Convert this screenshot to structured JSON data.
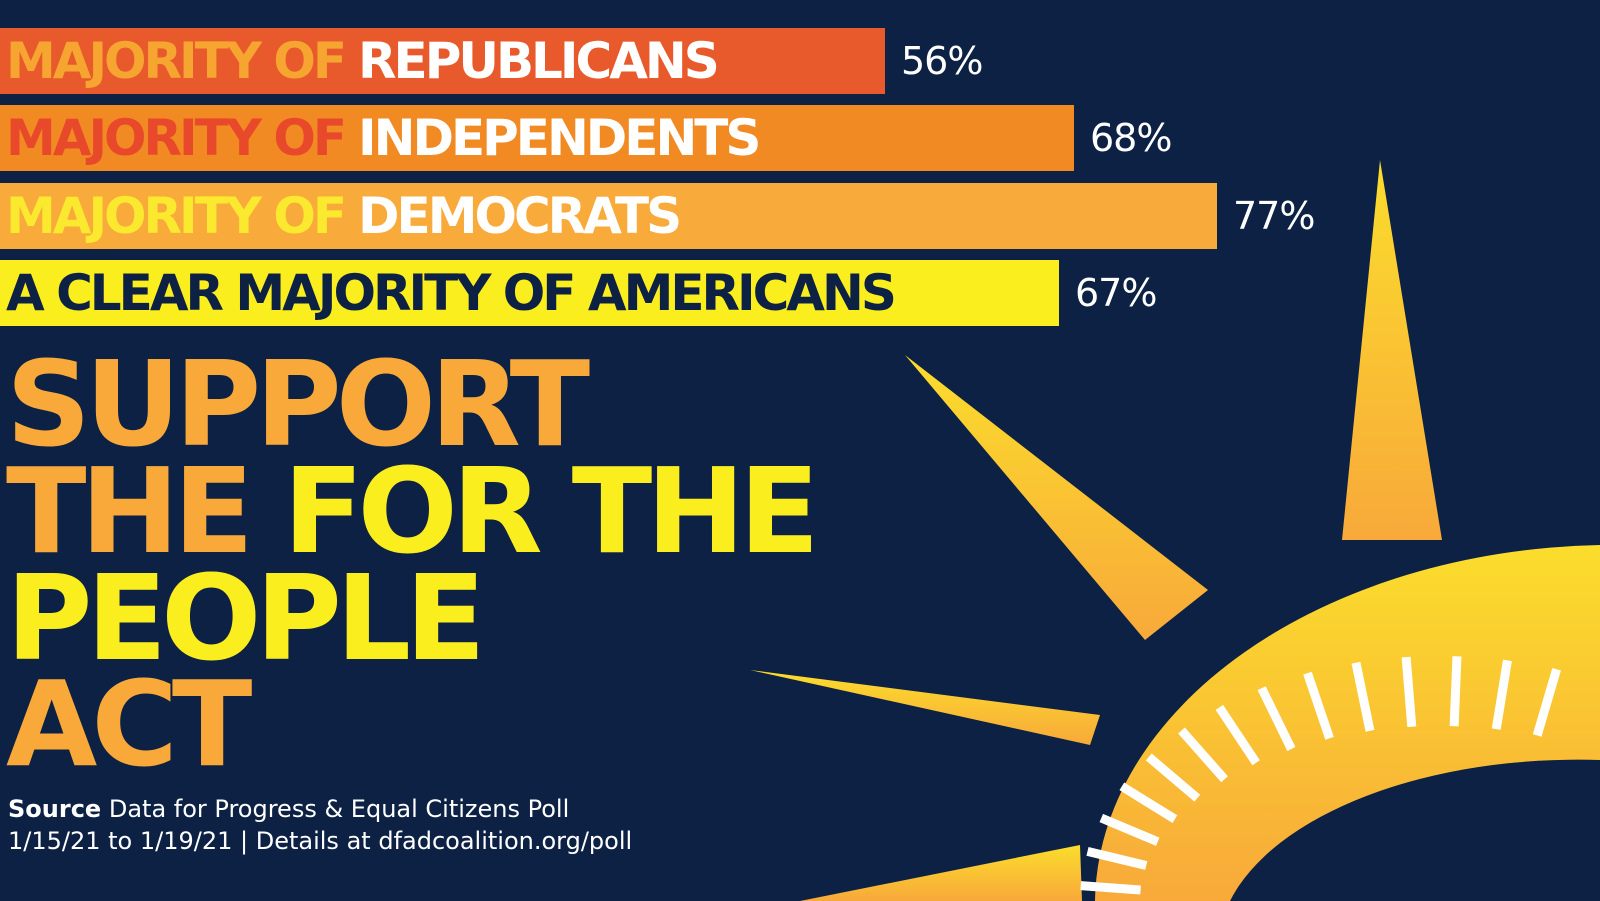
{
  "chart_data": {
    "type": "bar",
    "categories": [
      "MAJORITY OF REPUBLICANS",
      "MAJORITY OF INDEPENDENTS",
      "MAJORITY OF DEMOCRATS",
      "A CLEAR MAJORITY OF AMERICANS"
    ],
    "values": [
      56,
      68,
      77,
      67
    ],
    "xlim": [
      0,
      100
    ]
  },
  "bars": [
    {
      "lead": "MAJORITY OF",
      "group": "REPUBLICANS",
      "pct": "56%",
      "value": 56,
      "color": "#e85a2c",
      "lead_color": "#f7a531",
      "group_color": "#ffffff"
    },
    {
      "lead": "MAJORITY OF",
      "group": "INDEPENDENTS",
      "pct": "68%",
      "value": 68,
      "color": "#f28a24",
      "lead_color": "#e8492a",
      "group_color": "#ffffff"
    },
    {
      "lead": "MAJORITY OF",
      "group": "DEMOCRATS",
      "pct": "77%",
      "value": 77,
      "color": "#f8aa3a",
      "lead_color": "#fbe92f",
      "group_color": "#ffffff"
    },
    {
      "label": "A CLEAR MAJORITY OF AMERICANS",
      "pct": "67%",
      "value": 67,
      "color": "#fbee1f",
      "label_color": "#0c2144"
    }
  ],
  "headline": {
    "line1": "SUPPORT",
    "line2": "THE FOR THE",
    "line3": "PEOPLE",
    "line4": "ACT",
    "colors": {
      "orange": "#f8a93a",
      "yellow": "#fbee1f"
    }
  },
  "source": {
    "label": "Source",
    "text1": "Data for Progress & Equal Citizens Poll",
    "text2": "1/15/21 to 1/19/21 | Details at dfadcoalition.org/poll"
  },
  "colors": {
    "background": "#0c2144",
    "sun_yellow": "#fbd32e",
    "sun_orange": "#f8a93a"
  },
  "icons": [
    "sun-rays-graphic"
  ]
}
